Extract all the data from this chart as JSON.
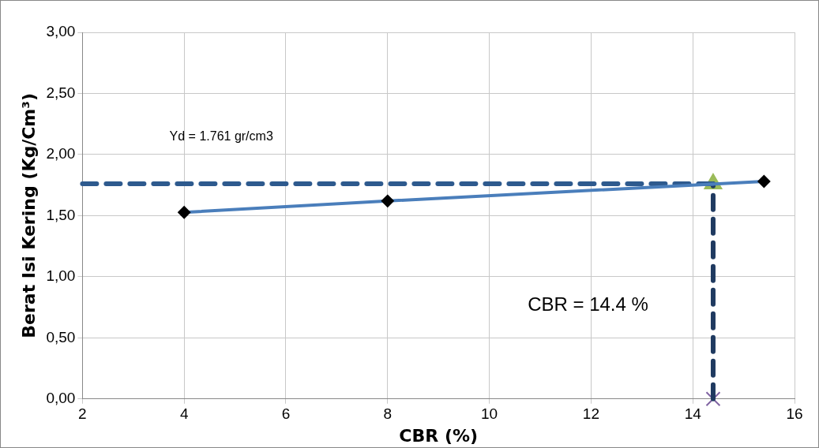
{
  "chart_data": {
    "type": "line",
    "xlabel": "CBR (%)",
    "ylabel": "Berat Isi Kering (Kg/Cm³)",
    "xlim": [
      2,
      16
    ],
    "xticks": [
      2,
      4,
      6,
      8,
      10,
      12,
      14,
      16
    ],
    "ylim": [
      0,
      3
    ],
    "yticks": [
      {
        "value": 0,
        "label": "0,00"
      },
      {
        "value": 0.5,
        "label": "0,50"
      },
      {
        "value": 1,
        "label": "1,00"
      },
      {
        "value": 1.5,
        "label": "1,50"
      },
      {
        "value": 2,
        "label": "2,00"
      },
      {
        "value": 2.5,
        "label": "2,50"
      },
      {
        "value": 3,
        "label": "3,00"
      }
    ],
    "grid": true,
    "legend": false,
    "series": [
      {
        "type": "line",
        "color": "#4a7ebb",
        "x": [
          4,
          8,
          15.4
        ],
        "values": [
          1.527,
          1.62,
          1.78
        ],
        "marker": "diamond",
        "line_style": "solid"
      },
      {
        "type": "line",
        "color": "#2e5a8e",
        "x": [
          2,
          14.4
        ],
        "values": [
          1.761,
          1.761
        ],
        "marker": "none",
        "line_style": "dashed"
      },
      {
        "type": "line",
        "color": "#1f3a60",
        "x": [
          14.4,
          14.4
        ],
        "values": [
          0,
          1.761
        ],
        "marker": "none",
        "line_style": "dashed"
      },
      {
        "type": "scatter",
        "color": "#9bbb59",
        "x": [
          14.4
        ],
        "values": [
          1.761
        ],
        "marker": "triangle"
      },
      {
        "type": "scatter",
        "color": "#8064a2",
        "x": [
          14.4
        ],
        "values": [
          0
        ],
        "marker": "cross"
      }
    ],
    "annotations": [
      "Yd = 1.761 gr/cm3",
      "CBR = 14.4 %"
    ]
  }
}
